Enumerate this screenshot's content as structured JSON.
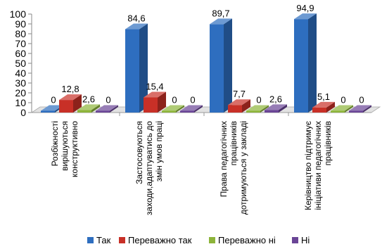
{
  "chart_data": {
    "type": "bar",
    "style": "3d-clustered",
    "categories": [
      [
        "Розбіжності",
        "вирішуються",
        "конструктивно"
      ],
      [
        "Застосовуються",
        "заходи,адаптуватись до",
        "змін умов праці"
      ],
      [
        "Права педагогічних",
        "працівників",
        "дотримуються у закладі"
      ],
      [
        "Керівництво підтримує",
        "ініціативи педагогічних",
        "працівників"
      ]
    ],
    "series": [
      {
        "name": "Так",
        "values": [
          0,
          84.6,
          89.7,
          94.9
        ],
        "labels": [
          "0",
          "84,6",
          "89,7",
          "94,9"
        ]
      },
      {
        "name": "Переважно так",
        "values": [
          12.8,
          15.4,
          7.7,
          5.1
        ],
        "labels": [
          "12,8",
          "15,4",
          "7,7",
          "5,1"
        ]
      },
      {
        "name": "Переважно ні",
        "values": [
          2.6,
          0,
          0,
          0
        ],
        "labels": [
          "2,6",
          "0",
          "0",
          "0"
        ]
      },
      {
        "name": "Ні",
        "values": [
          0,
          0,
          2.6,
          0
        ],
        "labels": [
          "0",
          "0",
          "2,6",
          "0"
        ]
      }
    ],
    "ylim": [
      0,
      100
    ],
    "yticks": [
      0,
      10,
      20,
      30,
      40,
      50,
      60,
      70,
      80,
      90,
      100
    ],
    "grid": false,
    "legend": "bottom",
    "colors": {
      "Так": "#2e6ebf",
      "Переважно так": "#c83027",
      "Переважно ні": "#8db43a",
      "Ні": "#6a4596"
    }
  }
}
